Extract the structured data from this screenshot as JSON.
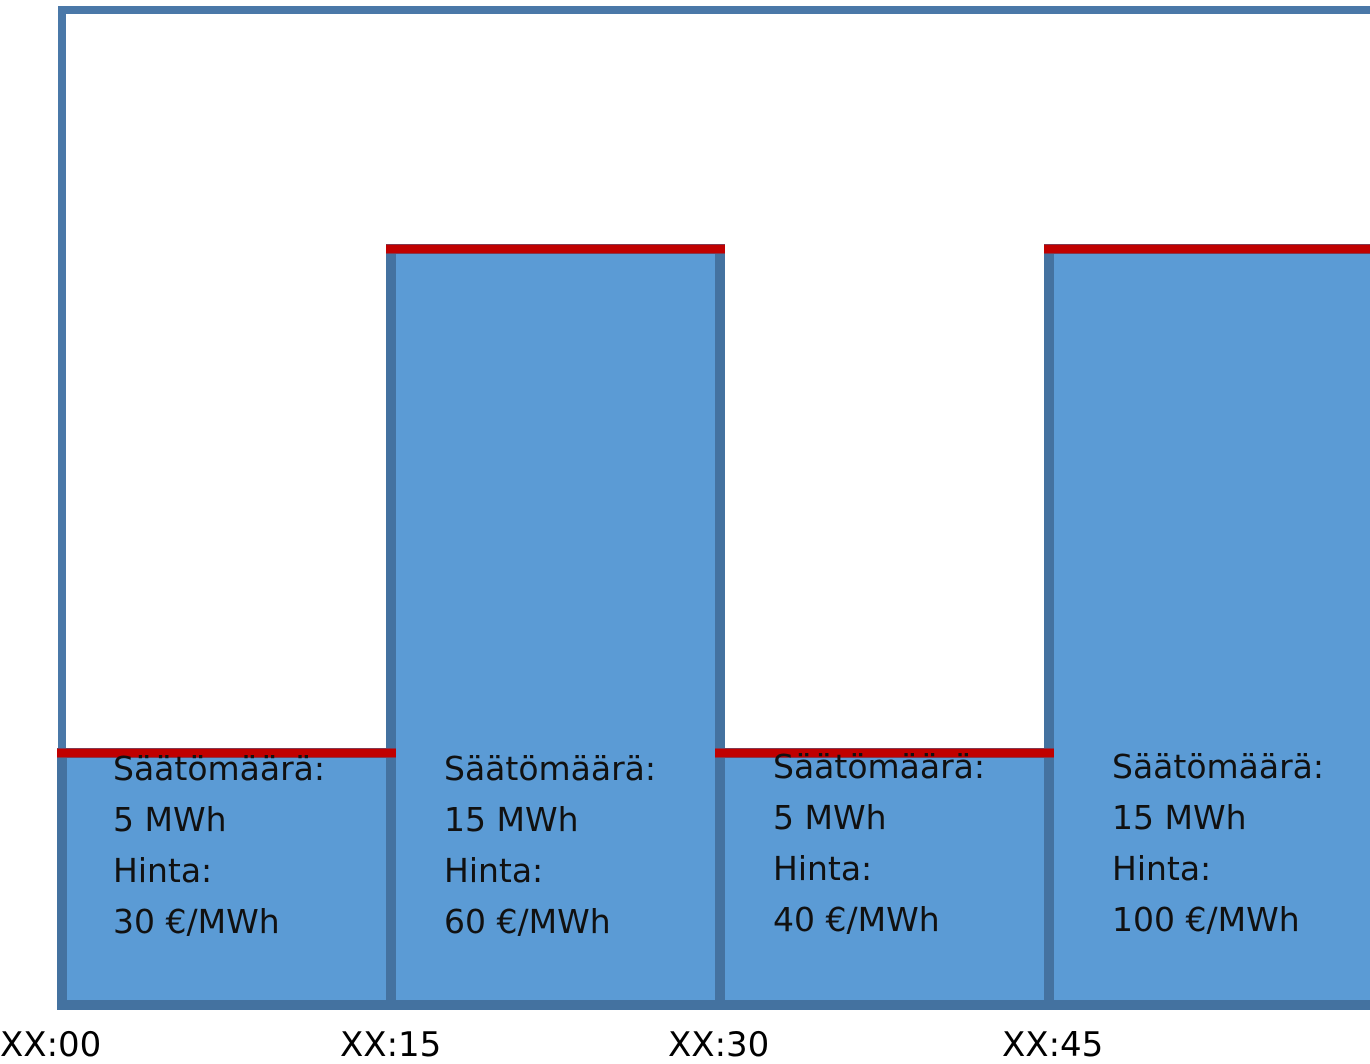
{
  "chart_data": {
    "type": "bar",
    "categories": [
      "XX:00",
      "XX:15",
      "XX:30",
      "XX:45"
    ],
    "series": [
      {
        "values": [
          5,
          15,
          5,
          15
        ]
      }
    ],
    "bar_labels": [
      {
        "amount_label": "Säätömäärä:",
        "amount": "5 MWh",
        "price_label": "Hinta:",
        "price": "30 €/MWh",
        "price_value": 30
      },
      {
        "amount_label": "Säätömäärä:",
        "amount": "15 MWh",
        "price_label": "Hinta:",
        "price": "60 €/MWh",
        "price_value": 60
      },
      {
        "amount_label": "Säätömäärä:",
        "amount": "5 MWh",
        "price_label": "Hinta:",
        "price": "40 €/MWh",
        "price_value": 40
      },
      {
        "amount_label": "Säätömäärä:",
        "amount": "15 MWh",
        "price_label": "Hinta:",
        "price": "100 €/MWh",
        "price_value": 100
      }
    ],
    "title": "",
    "xlabel": "",
    "ylabel": "",
    "colors": {
      "bar_fill": "#5b9bd5",
      "bar_border": "#4472a0",
      "level_line": "#c00000",
      "frame": "#4a78a8"
    },
    "legend": "none",
    "grid": false
  }
}
